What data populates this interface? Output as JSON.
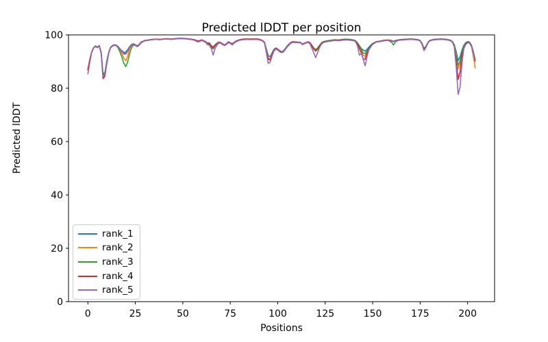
{
  "chart_data": {
    "type": "line",
    "title": "Predicted lDDT per position",
    "xlabel": "Positions",
    "ylabel": "Predicted lDDT",
    "xlim": [
      -10.2,
      214.2
    ],
    "ylim": [
      0,
      100
    ],
    "xticks": [
      0,
      25,
      50,
      75,
      100,
      125,
      150,
      175,
      200
    ],
    "yticks": [
      0,
      20,
      40,
      60,
      80,
      100
    ],
    "grid": false,
    "legend_position": "lower left",
    "x": [
      0,
      1,
      2,
      3,
      4,
      5,
      6,
      7,
      8,
      9,
      10,
      11,
      12,
      13,
      14,
      15,
      16,
      17,
      18,
      19,
      20,
      21,
      22,
      23,
      24,
      25,
      26,
      27,
      28,
      30,
      32,
      34,
      36,
      38,
      40,
      42,
      44,
      46,
      48,
      50,
      52,
      54,
      56,
      58,
      60,
      62,
      63,
      64,
      65,
      66,
      67,
      68,
      69,
      70,
      71,
      72,
      73,
      74,
      75,
      76,
      78,
      80,
      82,
      84,
      86,
      88,
      90,
      92,
      93,
      94,
      95,
      96,
      97,
      98,
      99,
      100,
      101,
      102,
      103,
      104,
      105,
      106,
      107,
      108,
      110,
      112,
      113,
      114,
      116,
      117,
      118,
      119,
      120,
      121,
      122,
      123,
      124,
      126,
      128,
      130,
      132,
      134,
      136,
      138,
      140,
      141,
      142,
      143,
      144,
      145,
      146,
      147,
      148,
      149,
      150,
      152,
      154,
      156,
      158,
      160,
      161,
      162,
      164,
      166,
      168,
      170,
      172,
      174,
      175,
      176,
      177,
      178,
      179,
      180,
      182,
      184,
      186,
      188,
      190,
      191,
      192,
      193,
      194,
      195,
      196,
      197,
      198,
      199,
      200,
      201,
      202,
      203,
      204
    ],
    "series": [
      {
        "name": "rank_1",
        "color": "#1f77b4",
        "y": [
          87.0,
          90.5,
          93.6,
          95.2,
          95.9,
          95.4,
          96.0,
          93.6,
          85.0,
          85.8,
          90.2,
          93.6,
          95.4,
          96.0,
          96.3,
          96.1,
          95.6,
          94.7,
          94.0,
          93.4,
          93.6,
          94.5,
          95.7,
          96.4,
          96.7,
          96.3,
          95.9,
          96.4,
          97.3,
          97.9,
          98.1,
          98.3,
          98.4,
          98.3,
          98.5,
          98.6,
          98.4,
          98.6,
          98.7,
          98.7,
          98.6,
          98.4,
          98.2,
          97.7,
          98.1,
          97.5,
          96.9,
          97.0,
          96.0,
          95.4,
          96.3,
          96.9,
          97.3,
          97.1,
          96.6,
          96.3,
          96.7,
          97.4,
          97.1,
          96.7,
          97.7,
          98.2,
          98.4,
          98.5,
          98.4,
          98.5,
          98.4,
          97.9,
          97.3,
          94.8,
          92.2,
          91.8,
          93.2,
          94.6,
          95.1,
          94.7,
          94.1,
          93.7,
          94.0,
          94.9,
          95.9,
          96.6,
          97.2,
          97.5,
          97.3,
          97.2,
          96.5,
          96.9,
          97.4,
          97.1,
          96.1,
          95.0,
          94.4,
          95.0,
          96.0,
          96.9,
          97.4,
          97.7,
          97.9,
          98.1,
          98.0,
          98.2,
          98.3,
          98.2,
          98.0,
          97.7,
          96.9,
          95.9,
          94.9,
          94.3,
          93.9,
          94.6,
          95.4,
          96.2,
          96.8,
          97.5,
          97.7,
          98.0,
          98.1,
          97.9,
          97.6,
          97.9,
          98.2,
          98.3,
          98.4,
          98.5,
          98.4,
          98.2,
          97.9,
          96.9,
          94.9,
          95.7,
          97.1,
          97.9,
          98.3,
          98.4,
          98.5,
          98.4,
          98.2,
          98.0,
          97.5,
          96.3,
          93.8,
          90.3,
          91.8,
          94.2,
          96.1,
          97.1,
          97.5,
          97.3,
          96.2,
          93.8,
          90.8
        ]
      },
      {
        "name": "rank_2",
        "color": "#ff7f0e",
        "y": [
          87.3,
          90.8,
          93.4,
          95.0,
          95.7,
          95.2,
          95.8,
          93.3,
          84.8,
          85.2,
          89.8,
          93.3,
          95.2,
          95.8,
          96.1,
          95.9,
          95.2,
          94.3,
          92.8,
          91.2,
          90.3,
          92.0,
          94.8,
          96.0,
          96.5,
          96.1,
          95.7,
          96.2,
          97.1,
          97.8,
          98.0,
          98.2,
          98.3,
          98.2,
          98.4,
          98.5,
          98.3,
          98.5,
          98.6,
          98.6,
          98.5,
          98.3,
          98.1,
          97.6,
          98.0,
          97.4,
          96.8,
          96.9,
          95.8,
          95.2,
          96.1,
          96.8,
          97.2,
          97.0,
          96.5,
          96.2,
          96.6,
          97.3,
          97.0,
          96.6,
          97.6,
          98.1,
          98.3,
          98.4,
          98.3,
          98.4,
          98.3,
          97.8,
          97.1,
          94.4,
          91.3,
          91.0,
          92.6,
          94.3,
          94.9,
          94.5,
          93.9,
          93.5,
          93.8,
          94.7,
          95.7,
          96.4,
          97.0,
          97.4,
          97.2,
          97.1,
          96.4,
          96.8,
          97.3,
          97.0,
          96.0,
          94.9,
          94.3,
          94.9,
          95.9,
          96.8,
          97.3,
          97.6,
          97.8,
          98.0,
          97.9,
          98.1,
          98.2,
          98.1,
          97.9,
          97.5,
          96.6,
          95.4,
          94.0,
          92.3,
          92.0,
          93.4,
          94.8,
          95.8,
          96.6,
          97.4,
          97.6,
          97.9,
          98.0,
          97.8,
          97.5,
          97.8,
          98.1,
          98.2,
          98.3,
          98.4,
          98.3,
          98.1,
          97.8,
          96.7,
          94.7,
          95.5,
          97.0,
          97.8,
          98.2,
          98.3,
          98.4,
          98.3,
          98.1,
          97.9,
          97.3,
          96.0,
          92.8,
          87.2,
          89.0,
          93.0,
          95.6,
          96.8,
          97.3,
          97.1,
          95.8,
          92.0,
          87.6
        ]
      },
      {
        "name": "rank_3",
        "color": "#2ca02c",
        "y": [
          86.8,
          90.3,
          93.5,
          95.1,
          95.8,
          95.3,
          95.9,
          93.5,
          85.6,
          86.0,
          90.4,
          93.5,
          95.3,
          95.9,
          96.2,
          96.0,
          95.0,
          93.4,
          91.5,
          89.3,
          88.1,
          90.0,
          93.0,
          95.2,
          96.2,
          96.0,
          95.6,
          96.1,
          97.0,
          97.8,
          98.0,
          98.2,
          98.3,
          98.2,
          98.4,
          98.5,
          98.3,
          98.5,
          98.6,
          98.6,
          98.5,
          98.3,
          98.1,
          97.6,
          98.0,
          97.3,
          96.5,
          96.7,
          95.6,
          94.7,
          95.9,
          96.6,
          97.1,
          96.9,
          96.4,
          96.1,
          96.5,
          97.2,
          96.9,
          96.2,
          97.5,
          98.1,
          98.3,
          98.4,
          98.3,
          98.4,
          98.3,
          97.8,
          97.1,
          94.2,
          90.9,
          90.5,
          92.4,
          94.1,
          94.8,
          94.4,
          93.8,
          93.4,
          93.7,
          94.6,
          95.6,
          96.3,
          97.0,
          97.3,
          97.2,
          97.1,
          96.4,
          96.8,
          97.3,
          97.0,
          96.1,
          95.1,
          94.5,
          95.1,
          96.1,
          97.0,
          97.5,
          97.8,
          98.0,
          98.2,
          98.1,
          98.3,
          98.4,
          98.3,
          98.1,
          97.8,
          97.0,
          96.0,
          94.6,
          93.2,
          92.9,
          94.0,
          95.0,
          96.0,
          96.7,
          97.4,
          97.6,
          97.9,
          98.0,
          97.2,
          96.2,
          97.4,
          98.1,
          98.2,
          98.3,
          98.4,
          98.3,
          98.1,
          97.8,
          96.8,
          94.8,
          95.6,
          97.0,
          97.8,
          98.2,
          98.3,
          98.4,
          98.3,
          98.1,
          97.9,
          97.4,
          96.1,
          92.0,
          88.6,
          90.2,
          93.6,
          95.8,
          96.9,
          97.4,
          97.2,
          96.0,
          93.4,
          90.4
        ]
      },
      {
        "name": "rank_4",
        "color": "#d62728",
        "y": [
          86.9,
          90.4,
          93.5,
          95.1,
          95.8,
          95.3,
          95.9,
          93.0,
          83.6,
          84.6,
          89.4,
          93.2,
          95.2,
          95.9,
          96.2,
          96.0,
          95.5,
          94.6,
          93.8,
          92.8,
          92.9,
          93.9,
          95.4,
          96.2,
          96.6,
          96.2,
          95.8,
          96.3,
          97.2,
          97.9,
          98.1,
          98.3,
          98.4,
          98.3,
          98.5,
          98.6,
          98.4,
          98.6,
          98.7,
          98.7,
          98.6,
          98.4,
          98.2,
          97.7,
          98.1,
          97.4,
          96.7,
          96.9,
          95.8,
          95.1,
          96.1,
          96.8,
          97.2,
          97.0,
          96.5,
          96.2,
          96.6,
          97.3,
          97.0,
          96.6,
          97.6,
          98.2,
          98.4,
          98.5,
          98.4,
          98.5,
          98.4,
          97.9,
          97.2,
          93.8,
          90.9,
          90.6,
          92.5,
          94.2,
          94.9,
          94.5,
          93.9,
          93.5,
          93.8,
          94.7,
          95.7,
          96.4,
          97.1,
          97.4,
          97.3,
          97.2,
          96.5,
          96.9,
          97.4,
          97.0,
          95.8,
          94.6,
          93.9,
          94.6,
          95.7,
          96.7,
          97.2,
          97.6,
          97.8,
          98.0,
          97.9,
          98.1,
          98.2,
          98.1,
          97.9,
          97.6,
          96.7,
          94.9,
          93.2,
          91.0,
          90.8,
          93.0,
          94.6,
          95.7,
          96.5,
          97.4,
          97.6,
          97.9,
          98.0,
          97.8,
          97.5,
          97.8,
          98.1,
          98.2,
          98.3,
          98.4,
          98.3,
          98.1,
          97.8,
          96.6,
          94.5,
          95.4,
          96.9,
          97.8,
          98.2,
          98.3,
          98.4,
          98.3,
          98.1,
          97.9,
          97.3,
          95.6,
          90.0,
          83.3,
          86.0,
          92.0,
          95.2,
          96.7,
          97.2,
          97.0,
          95.8,
          93.2,
          90.1
        ]
      },
      {
        "name": "rank_5",
        "color": "#9467bd",
        "y": [
          85.4,
          89.6,
          93.3,
          95.0,
          95.7,
          95.2,
          95.8,
          93.2,
          84.4,
          85.0,
          89.8,
          93.3,
          95.2,
          95.8,
          96.1,
          95.9,
          95.4,
          94.5,
          93.7,
          93.0,
          93.2,
          94.1,
          95.5,
          96.2,
          96.5,
          96.1,
          95.7,
          96.2,
          97.1,
          97.8,
          98.0,
          98.2,
          98.3,
          98.2,
          98.4,
          98.5,
          98.3,
          98.5,
          98.6,
          98.6,
          98.5,
          98.3,
          98.0,
          97.3,
          97.9,
          97.2,
          96.3,
          96.1,
          94.9,
          92.4,
          94.9,
          96.2,
          97.0,
          96.8,
          96.3,
          96.0,
          96.4,
          97.1,
          96.8,
          96.4,
          97.4,
          98.0,
          98.2,
          98.3,
          98.2,
          98.3,
          98.2,
          97.7,
          97.0,
          93.4,
          89.3,
          89.8,
          92.0,
          93.9,
          94.7,
          94.3,
          93.7,
          93.3,
          93.6,
          94.5,
          95.5,
          96.2,
          96.9,
          97.2,
          97.1,
          97.0,
          96.3,
          96.7,
          97.2,
          96.6,
          95.0,
          93.2,
          91.5,
          93.4,
          95.2,
          96.5,
          97.1,
          97.5,
          97.7,
          97.9,
          97.8,
          98.0,
          98.1,
          98.0,
          97.8,
          97.4,
          95.9,
          92.4,
          93.0,
          90.9,
          88.4,
          91.8,
          94.4,
          95.5,
          96.4,
          97.3,
          97.5,
          97.8,
          97.9,
          97.7,
          97.4,
          97.7,
          98.0,
          98.1,
          98.2,
          98.3,
          98.2,
          98.0,
          97.7,
          96.4,
          94.1,
          95.2,
          96.8,
          97.7,
          98.1,
          98.2,
          98.3,
          98.2,
          98.0,
          97.8,
          97.2,
          95.5,
          88.0,
          77.7,
          80.3,
          89.3,
          94.8,
          96.4,
          97.0,
          96.9,
          95.7,
          93.2,
          90.2
        ]
      }
    ]
  }
}
